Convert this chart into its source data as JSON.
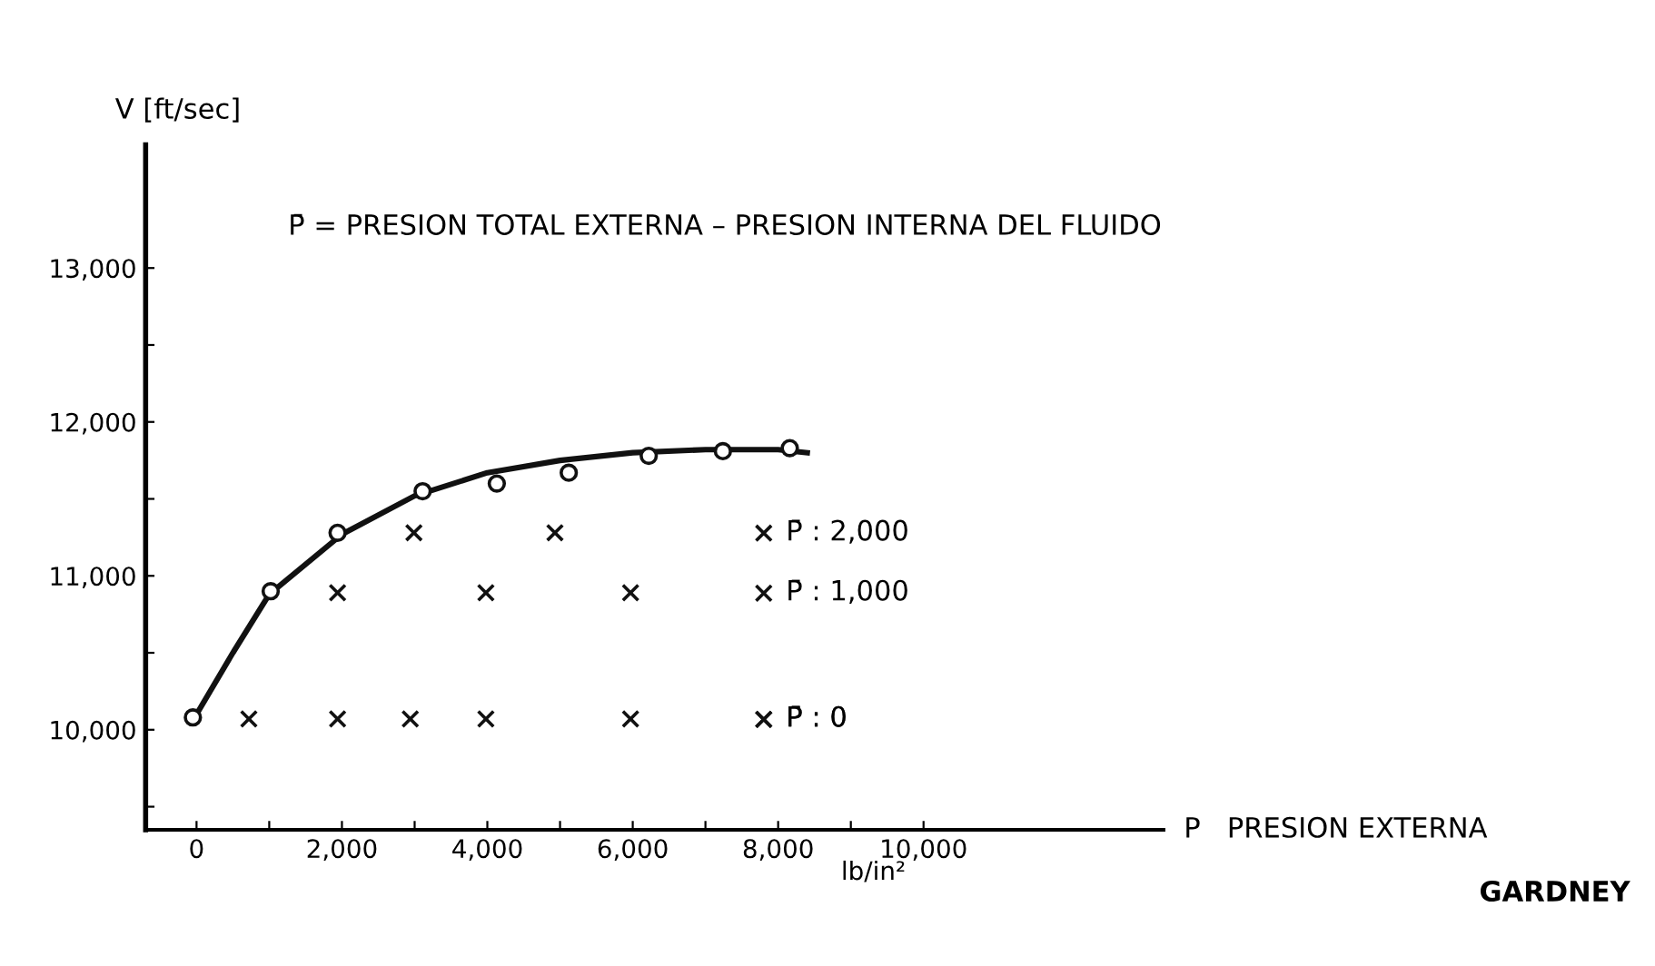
{
  "chart_data": {
    "type": "scatter",
    "xlabel": "P   PRESION EXTERNA",
    "ylabel": "V [ft/sec]",
    "annotations": [
      "P̄ = PRESION TOTAL EXTERNA – PRESION INTERNA DEL FLUIDO",
      "lb/in²",
      "GARDNEY"
    ],
    "series": [
      {
        "type": "line",
        "color": "#111111",
        "marker": "none",
        "x": [
          0,
          500,
          1000,
          2000,
          3000,
          4000,
          5000,
          6000,
          7000,
          8000,
          8400
        ],
        "values": [
          10100,
          10500,
          10880,
          11270,
          11520,
          11670,
          11750,
          11800,
          11820,
          11820,
          11800
        ]
      },
      {
        "color": "#111111",
        "marker": "circle",
        "x": [
          -50,
          1020,
          1940,
          3110,
          4130,
          5120,
          6220,
          7240,
          8160
        ],
        "values": [
          10080,
          10900,
          11280,
          11550,
          11600,
          11670,
          11780,
          11810,
          11830
        ]
      },
      {
        "name": "P̄ : 2,000",
        "color": "#111111",
        "marker": "cross",
        "x": [
          2990,
          4930
        ],
        "values": [
          11280,
          11280
        ]
      },
      {
        "name": "P̄ : 1,000",
        "color": "#111111",
        "marker": "cross",
        "x": [
          1940,
          3980,
          5970
        ],
        "values": [
          10890,
          10890,
          10890
        ]
      },
      {
        "name": "P̄ : 0",
        "color": "#111111",
        "marker": "cross",
        "x": [
          720,
          1940,
          2940,
          3980,
          5970
        ],
        "values": [
          10070,
          10070,
          10070,
          10070,
          10070
        ]
      }
    ],
    "xlim": [
      -700,
      13300
    ],
    "ylim": [
      9350,
      13800
    ],
    "xticks": [
      0,
      {
        "value": 1000,
        "label": null
      },
      {
        "value": 2000,
        "label": "2,000"
      },
      {
        "value": 3000,
        "label": null
      },
      {
        "value": 4000,
        "label": "4,000"
      },
      {
        "value": 5000,
        "label": null
      },
      {
        "value": 6000,
        "label": "6,000"
      },
      {
        "value": 7000,
        "label": null
      },
      {
        "value": 8000,
        "label": "8,000"
      },
      {
        "value": 9000,
        "label": null
      },
      {
        "value": 10000,
        "label": "10,000"
      }
    ],
    "yticks": [
      {
        "value": 9500,
        "label": null
      },
      {
        "value": 10000,
        "label": "10,000"
      },
      {
        "value": 10500,
        "label": null
      },
      {
        "value": 11000,
        "label": "11,000"
      },
      {
        "value": 11500,
        "label": null
      },
      {
        "value": 12000,
        "label": "12,000"
      },
      {
        "value": 12500,
        "label": null
      },
      {
        "value": 13000,
        "label": "13,000"
      }
    ],
    "grid": false,
    "legend": "right"
  }
}
